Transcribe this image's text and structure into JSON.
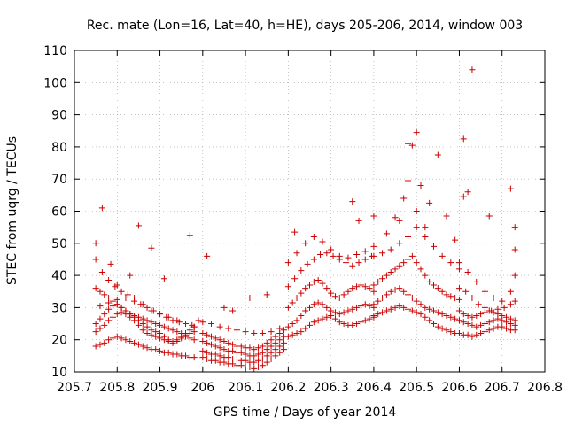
{
  "chart_data": {
    "type": "scatter",
    "title": "Rec. mate (Lon=16, Lat=40, h=HE), days 205-206, 2014, window 003",
    "xlabel": "GPS time / Days of year 2014",
    "ylabel": "STEC from uqrg / TECUs",
    "xlim": [
      205.7,
      206.8
    ],
    "ylim": [
      10,
      110
    ],
    "xticks": [
      "205.7",
      "205.8",
      "205.9",
      "206",
      "206.1",
      "206.2",
      "206.3",
      "206.4",
      "206.5",
      "206.6",
      "206.7",
      "206.8"
    ],
    "yticks": [
      "10",
      "20",
      "30",
      "40",
      "50",
      "60",
      "70",
      "80",
      "90",
      "100",
      "110"
    ],
    "grid": true,
    "marker": "plus",
    "color": "#cc0000",
    "series": [
      {
        "x": [
          205.75,
          205.76,
          205.77,
          205.78,
          205.79,
          205.8,
          205.81,
          205.82,
          205.83,
          205.84,
          205.85,
          205.86,
          205.87,
          205.88,
          205.89,
          205.9,
          205.91,
          205.92,
          205.93,
          205.94,
          205.95,
          205.96,
          205.97,
          205.98,
          205.75,
          205.76,
          205.77,
          205.78,
          205.79,
          205.8,
          205.81,
          205.82,
          205.83,
          205.84,
          205.85,
          205.86,
          205.87,
          205.88,
          205.89,
          205.9,
          205.91,
          205.92,
          205.93,
          205.94,
          205.95,
          205.96,
          205.97,
          205.98,
          205.75,
          205.76,
          205.77,
          205.78,
          205.79,
          205.8,
          205.81,
          205.82,
          205.83,
          205.84,
          205.85,
          205.86,
          205.87,
          205.88,
          205.89,
          205.9,
          205.91,
          205.92,
          205.93,
          205.94,
          205.95,
          205.96,
          205.97,
          205.98,
          205.75,
          205.76,
          205.77,
          205.78,
          205.79,
          205.8,
          205.81,
          205.82,
          205.83,
          205.84,
          205.85,
          205.86,
          205.87,
          205.88,
          205.89,
          205.9,
          205.91,
          205.92,
          205.93,
          205.94,
          205.95,
          205.96,
          205.97,
          205.98,
          205.75,
          205.765,
          205.78,
          205.795,
          205.81,
          205.825,
          205.84,
          205.855,
          205.87,
          205.885,
          205.9,
          205.915,
          205.93,
          205.945,
          205.96,
          205.975,
          205.76,
          205.78,
          205.8,
          205.82,
          205.84,
          205.86,
          205.88,
          205.9,
          205.92,
          205.94,
          205.96,
          205.98,
          205.75,
          205.765,
          205.785,
          205.8,
          205.83,
          205.85,
          205.88,
          205.91,
          205.97
        ],
        "y": [
          22.5,
          23.5,
          24.5,
          26.0,
          27.0,
          28.0,
          28.5,
          28.0,
          27.0,
          26.0,
          24.5,
          23.0,
          22.0,
          21.5,
          21.0,
          20.5,
          20.0,
          19.5,
          19.0,
          19.5,
          20.5,
          21.5,
          22.0,
          22.5,
          25.0,
          26.5,
          28.0,
          29.5,
          30.5,
          31.0,
          30.0,
          29.0,
          28.0,
          27.0,
          26.0,
          25.0,
          24.0,
          23.0,
          22.5,
          22.0,
          21.0,
          20.0,
          19.5,
          20.0,
          21.0,
          22.0,
          23.0,
          24.0,
          36.0,
          35.0,
          34.0,
          33.0,
          32.0,
          31.0,
          30.0,
          29.0,
          28.0,
          27.5,
          27.0,
          26.5,
          26.0,
          25.5,
          25.0,
          24.5,
          24.0,
          23.5,
          23.0,
          22.5,
          22.0,
          21.0,
          20.5,
          20.0,
          18.0,
          18.5,
          19.0,
          20.0,
          20.5,
          21.0,
          20.5,
          20.0,
          19.5,
          19.0,
          18.5,
          18.0,
          17.5,
          17.0,
          17.0,
          16.5,
          16.0,
          16.0,
          15.5,
          15.5,
          15.0,
          15.0,
          14.5,
          14.5,
          45.0,
          41.0,
          38.5,
          36.5,
          35.0,
          34.0,
          33.0,
          31.0,
          30.0,
          29.0,
          28.0,
          27.0,
          26.0,
          25.5,
          25.0,
          24.5,
          30.5,
          31.5,
          32.5,
          33.0,
          32.0,
          31.0,
          29.0,
          28.0,
          27.0,
          26.0,
          25.0,
          24.0,
          50.0,
          61.0,
          43.5,
          37.0,
          40.0,
          55.5,
          48.5,
          39.0,
          52.5
        ]
      },
      {
        "x": [
          206.0,
          206.01,
          206.02,
          206.03,
          206.04,
          206.05,
          206.06,
          206.07,
          206.08,
          206.09,
          206.1,
          206.11,
          206.12,
          206.13,
          206.14,
          206.15,
          206.16,
          206.17,
          206.18,
          206.19,
          206.0,
          206.01,
          206.02,
          206.03,
          206.04,
          206.05,
          206.06,
          206.07,
          206.08,
          206.09,
          206.1,
          206.11,
          206.12,
          206.13,
          206.14,
          206.15,
          206.16,
          206.17,
          206.18,
          206.19,
          206.0,
          206.01,
          206.02,
          206.03,
          206.04,
          206.05,
          206.06,
          206.07,
          206.08,
          206.09,
          206.1,
          206.11,
          206.12,
          206.13,
          206.14,
          206.15,
          206.16,
          206.17,
          206.18,
          206.19,
          206.0,
          206.01,
          206.02,
          206.03,
          206.04,
          206.05,
          206.06,
          206.07,
          206.08,
          206.09,
          206.1,
          206.11,
          206.12,
          206.13,
          206.14,
          206.15,
          206.16,
          206.17,
          206.18,
          206.19,
          205.99,
          206.0,
          206.02,
          206.04,
          206.06,
          206.08,
          206.1,
          206.12,
          206.14,
          206.16,
          206.18,
          206.05,
          206.11,
          206.15,
          206.01,
          206.07
        ],
        "y": [
          14.5,
          14.0,
          13.5,
          13.5,
          13.0,
          13.0,
          12.5,
          12.5,
          12.0,
          12.0,
          11.5,
          11.5,
          11.0,
          11.5,
          12.0,
          13.0,
          14.0,
          15.0,
          16.0,
          17.0,
          16.5,
          16.0,
          15.5,
          15.5,
          15.0,
          14.5,
          14.5,
          14.0,
          14.0,
          13.5,
          13.5,
          13.0,
          13.0,
          13.5,
          14.0,
          15.0,
          16.0,
          17.0,
          18.0,
          19.0,
          19.5,
          19.0,
          18.5,
          18.0,
          17.5,
          17.0,
          16.5,
          16.5,
          16.0,
          16.0,
          15.5,
          15.0,
          15.0,
          15.5,
          16.0,
          17.0,
          18.0,
          19.0,
          20.0,
          21.0,
          22.0,
          21.5,
          21.0,
          20.5,
          20.0,
          19.5,
          19.0,
          18.5,
          18.0,
          18.0,
          17.5,
          17.5,
          17.0,
          17.5,
          18.0,
          19.0,
          20.0,
          21.0,
          22.0,
          23.0,
          26.0,
          25.5,
          25.0,
          24.0,
          23.5,
          23.0,
          22.5,
          22.0,
          22.0,
          22.5,
          23.5,
          30.0,
          33.0,
          34.0,
          46.0,
          29.0
        ]
      },
      {
        "x": [
          206.2,
          206.21,
          206.22,
          206.23,
          206.24,
          206.25,
          206.26,
          206.27,
          206.28,
          206.29,
          206.3,
          206.31,
          206.32,
          206.33,
          206.34,
          206.35,
          206.36,
          206.37,
          206.38,
          206.39,
          206.4,
          206.2,
          206.21,
          206.22,
          206.23,
          206.24,
          206.25,
          206.26,
          206.27,
          206.28,
          206.29,
          206.3,
          206.31,
          206.32,
          206.33,
          206.34,
          206.35,
          206.36,
          206.37,
          206.38,
          206.39,
          206.4,
          206.2,
          206.21,
          206.22,
          206.23,
          206.24,
          206.25,
          206.26,
          206.27,
          206.28,
          206.29,
          206.3,
          206.31,
          206.32,
          206.33,
          206.34,
          206.35,
          206.36,
          206.37,
          206.38,
          206.39,
          206.4,
          206.2,
          206.215,
          206.23,
          206.245,
          206.26,
          206.275,
          206.29,
          206.305,
          206.32,
          206.335,
          206.35,
          206.365,
          206.38,
          206.395,
          206.2,
          206.22,
          206.24,
          206.26,
          206.28,
          206.3,
          206.32,
          206.34,
          206.36,
          206.38,
          206.4,
          206.215,
          206.35,
          206.365,
          206.4
        ],
        "y": [
          21.0,
          21.5,
          22.0,
          22.5,
          23.5,
          24.5,
          25.5,
          26.0,
          26.5,
          27.0,
          27.5,
          26.5,
          25.5,
          25.0,
          24.5,
          24.5,
          25.0,
          25.5,
          26.0,
          26.5,
          27.0,
          24.0,
          25.0,
          26.0,
          27.5,
          29.0,
          30.0,
          31.0,
          31.5,
          31.0,
          30.0,
          29.0,
          28.5,
          28.0,
          28.5,
          29.0,
          29.5,
          30.0,
          30.5,
          31.0,
          30.5,
          30.0,
          30.0,
          31.5,
          33.0,
          34.5,
          36.0,
          37.0,
          38.0,
          38.5,
          37.5,
          36.0,
          34.5,
          33.5,
          33.0,
          34.0,
          35.0,
          36.0,
          36.5,
          37.0,
          36.5,
          36.0,
          35.0,
          36.5,
          39.0,
          41.5,
          43.5,
          45.0,
          46.5,
          47.0,
          46.0,
          45.0,
          44.0,
          43.0,
          44.0,
          45.0,
          46.0,
          44.0,
          47.0,
          50.0,
          52.0,
          50.5,
          48.0,
          46.0,
          45.5,
          46.5,
          47.5,
          49.0,
          53.5,
          63.0,
          57.0,
          58.5
        ]
      },
      {
        "x": [
          206.4,
          206.41,
          206.42,
          206.43,
          206.44,
          206.45,
          206.46,
          206.47,
          206.48,
          206.49,
          206.5,
          206.51,
          206.52,
          206.53,
          206.54,
          206.55,
          206.56,
          206.57,
          206.58,
          206.59,
          206.6,
          206.4,
          206.41,
          206.42,
          206.43,
          206.44,
          206.45,
          206.46,
          206.47,
          206.48,
          206.49,
          206.5,
          206.51,
          206.52,
          206.53,
          206.54,
          206.55,
          206.56,
          206.57,
          206.58,
          206.59,
          206.6,
          206.4,
          206.41,
          206.42,
          206.43,
          206.44,
          206.45,
          206.46,
          206.47,
          206.48,
          206.49,
          206.5,
          206.51,
          206.52,
          206.53,
          206.54,
          206.55,
          206.56,
          206.57,
          206.58,
          206.59,
          206.6,
          206.4,
          206.42,
          206.44,
          206.46,
          206.48,
          206.5,
          206.52,
          206.54,
          206.56,
          206.58,
          206.6,
          206.43,
          206.45,
          206.47,
          206.48,
          206.49,
          206.5,
          206.51,
          206.53,
          206.55,
          206.57,
          206.59,
          206.61,
          206.63,
          206.46,
          206.48,
          206.5,
          206.52
        ],
        "y": [
          27.5,
          28.0,
          28.5,
          29.0,
          29.5,
          30.0,
          30.5,
          30.0,
          29.5,
          29.0,
          28.5,
          28.0,
          27.0,
          26.0,
          25.0,
          24.0,
          23.5,
          23.0,
          22.5,
          22.0,
          22.0,
          31.0,
          32.0,
          33.0,
          34.0,
          35.0,
          35.5,
          36.0,
          35.0,
          34.0,
          33.0,
          32.0,
          31.0,
          30.0,
          29.5,
          29.0,
          28.5,
          28.0,
          27.5,
          27.0,
          26.5,
          26.0,
          37.0,
          38.0,
          39.0,
          40.0,
          41.0,
          42.0,
          43.0,
          44.0,
          45.0,
          46.0,
          44.0,
          42.0,
          40.0,
          38.0,
          37.0,
          36.0,
          35.0,
          34.0,
          33.5,
          33.0,
          32.5,
          46.0,
          47.0,
          48.0,
          50.0,
          52.0,
          55.0,
          52.0,
          49.0,
          46.0,
          44.0,
          42.0,
          53.0,
          58.0,
          64.0,
          69.5,
          80.5,
          84.5,
          68.0,
          62.5,
          77.5,
          58.5,
          51.0,
          82.5,
          104.0,
          57.0,
          81.0,
          60.0,
          55.0
        ]
      },
      {
        "x": [
          206.6,
          206.61,
          206.62,
          206.63,
          206.64,
          206.65,
          206.66,
          206.67,
          206.68,
          206.69,
          206.7,
          206.71,
          206.72,
          206.73,
          206.6,
          206.61,
          206.62,
          206.63,
          206.64,
          206.65,
          206.66,
          206.67,
          206.68,
          206.69,
          206.7,
          206.71,
          206.72,
          206.73,
          206.6,
          206.61,
          206.62,
          206.63,
          206.64,
          206.65,
          206.66,
          206.67,
          206.68,
          206.69,
          206.7,
          206.71,
          206.72,
          206.73,
          206.6,
          206.615,
          206.63,
          206.645,
          206.66,
          206.675,
          206.69,
          206.705,
          206.72,
          206.73,
          206.6,
          206.62,
          206.64,
          206.66,
          206.68,
          206.7,
          206.72,
          206.73,
          206.61,
          206.62,
          206.67,
          206.72,
          206.73,
          206.73
        ],
        "y": [
          22.0,
          21.5,
          21.5,
          21.0,
          21.5,
          22.0,
          22.5,
          23.0,
          23.5,
          24.0,
          24.0,
          23.5,
          23.0,
          23.0,
          26.0,
          25.5,
          25.0,
          24.5,
          24.0,
          24.5,
          25.0,
          25.5,
          26.0,
          26.5,
          26.0,
          25.5,
          25.0,
          24.5,
          29.0,
          28.0,
          27.5,
          27.0,
          27.5,
          28.0,
          28.5,
          29.0,
          28.5,
          28.0,
          27.5,
          27.0,
          26.5,
          26.0,
          36.0,
          35.0,
          33.0,
          31.0,
          30.0,
          29.0,
          29.5,
          30.0,
          31.0,
          32.0,
          44.0,
          41.0,
          38.0,
          35.0,
          33.0,
          32.0,
          35.0,
          40.0,
          64.5,
          66.0,
          58.5,
          67.0,
          55.0,
          48.0
        ]
      }
    ]
  }
}
